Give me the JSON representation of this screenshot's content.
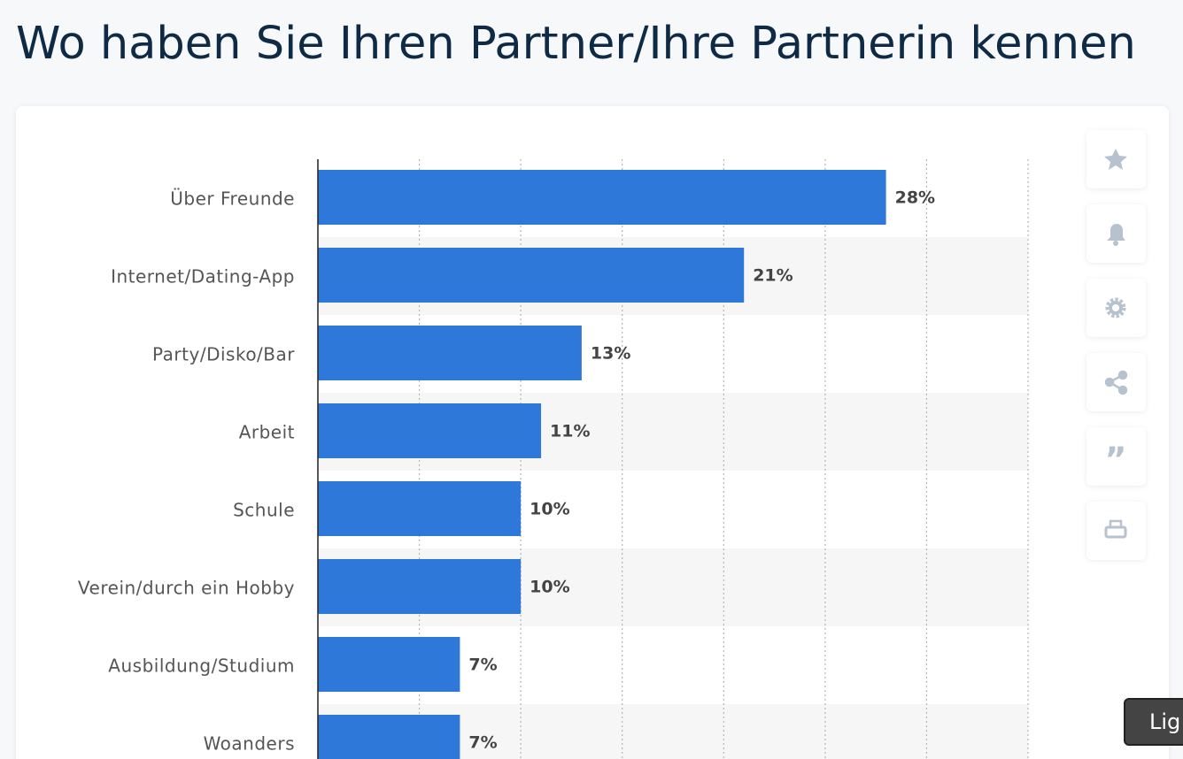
{
  "chart_data": {
    "type": "hbar",
    "title": "Wo haben Sie Ihren Partner/Ihre Partnerin kennen",
    "categories": [
      "Über Freunde",
      "Internet/Dating-App",
      "Party/Disko/Bar",
      "Arbeit",
      "Schule",
      "Verein/durch ein Hobby",
      "Ausbildung/Studium",
      "Woanders"
    ],
    "values": [
      28,
      21,
      13,
      11,
      10,
      10,
      7,
      7
    ],
    "value_labels": [
      "28%",
      "21%",
      "13%",
      "11%",
      "10%",
      "10%",
      "7%",
      "7%"
    ],
    "color": "#2e78d9",
    "xlim": [
      0,
      35
    ],
    "xticks": [
      0,
      5,
      10,
      15,
      20,
      25,
      30,
      35
    ],
    "grid": true
  },
  "overlay_button": "Lig"
}
